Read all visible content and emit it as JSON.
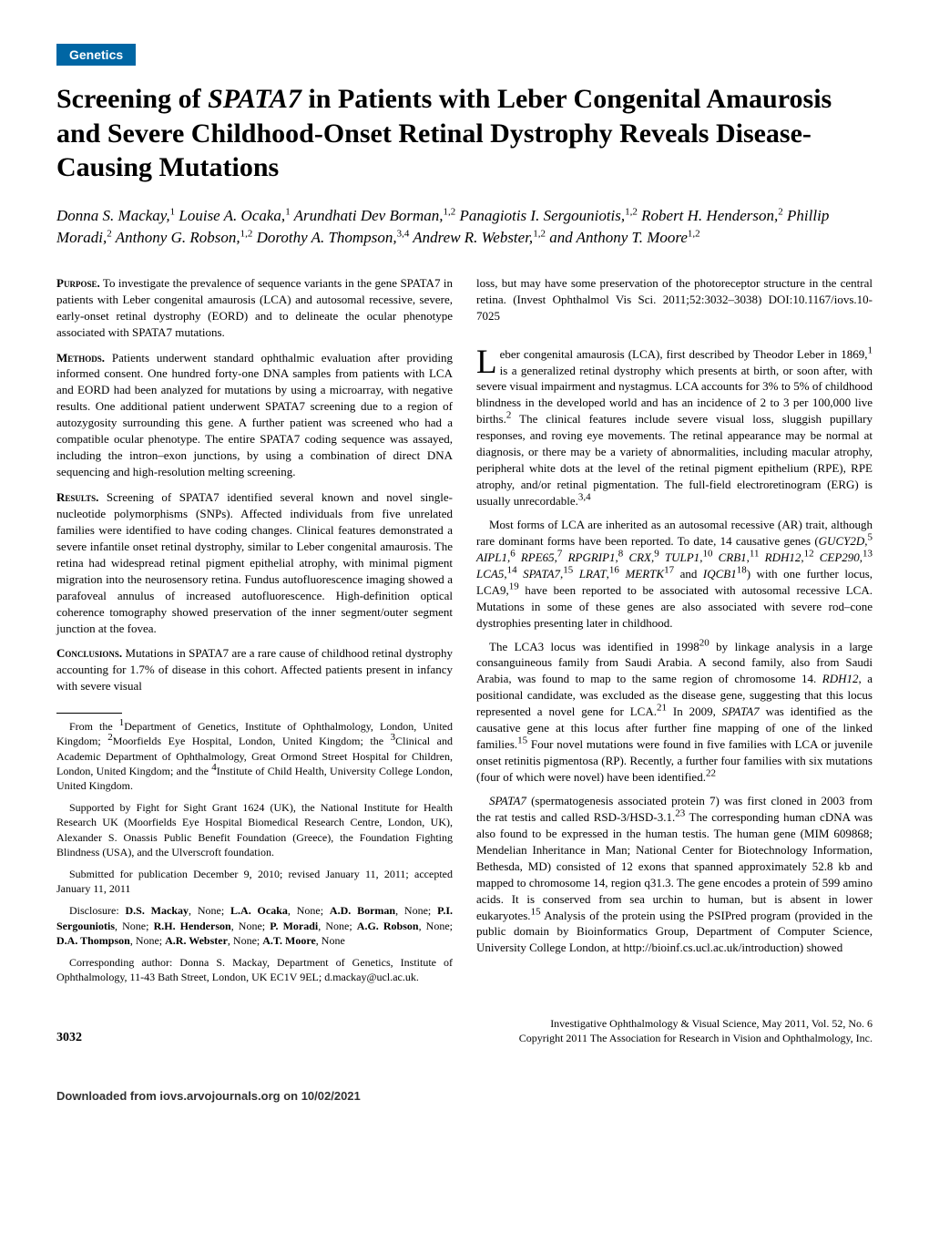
{
  "category": "Genetics",
  "title": "Screening of SPATA7 in Patients with Leber Congenital Amaurosis and Severe Childhood-Onset Retinal Dystrophy Reveals Disease-Causing Mutations",
  "authors_html": "Donna S. Mackay,<span class='sup'>1</span> Louise A. Ocaka,<span class='sup'>1</span> Arundhati Dev Borman,<span class='sup'>1,2</span> Panagiotis I. Sergouniotis,<span class='sup'>1,2</span> Robert H. Henderson,<span class='sup'>2</span> Phillip Moradi,<span class='sup'>2</span> Anthony G. Robson,<span class='sup'>1,2</span> Dorothy A. Thompson,<span class='sup'>3,4</span> Andrew R. Webster,<span class='sup'>1,2</span> and Anthony T. Moore<span class='sup'>1,2</span>",
  "abstract": {
    "purpose": {
      "heading": "Purpose.",
      "text": "To investigate the prevalence of sequence variants in the gene SPATA7 in patients with Leber congenital amaurosis (LCA) and autosomal recessive, severe, early-onset retinal dystrophy (EORD) and to delineate the ocular phenotype associated with SPATA7 mutations."
    },
    "methods": {
      "heading": "Methods.",
      "text": "Patients underwent standard ophthalmic evaluation after providing informed consent. One hundred forty-one DNA samples from patients with LCA and EORD had been analyzed for mutations by using a microarray, with negative results. One additional patient underwent SPATA7 screening due to a region of autozygosity surrounding this gene. A further patient was screened who had a compatible ocular phenotype. The entire SPATA7 coding sequence was assayed, including the intron–exon junctions, by using a combination of direct DNA sequencing and high-resolution melting screening."
    },
    "results": {
      "heading": "Results.",
      "text": "Screening of SPATA7 identified several known and novel single-nucleotide polymorphisms (SNPs). Affected individuals from five unrelated families were identified to have coding changes. Clinical features demonstrated a severe infantile onset retinal dystrophy, similar to Leber congenital amaurosis. The retina had widespread retinal pigment epithelial atrophy, with minimal pigment migration into the neurosensory retina. Fundus autofluorescence imaging showed a parafoveal annulus of increased autofluorescence. High-definition optical coherence tomography showed preservation of the inner segment/outer segment junction at the fovea."
    },
    "conclusions": {
      "heading": "Conclusions.",
      "text": "Mutations in SPATA7 are a rare cause of childhood retinal dystrophy accounting for 1.7% of disease in this cohort. Affected patients present in infancy with severe visual"
    }
  },
  "col2_continuation": "loss, but may have some preservation of the photoreceptor structure in the central retina. (Invest Ophthalmol Vis Sci. 2011;52:3032–3038) DOI:10.1167/iovs.10-7025",
  "body_para1_html": "<span class='dropcap'>L</span>eber congenital amaurosis (LCA), first described by Theodor Leber in 1869,<span class='sup'>1</span> is a generalized retinal dystrophy which presents at birth, or soon after, with severe visual impairment and nystagmus. LCA accounts for 3% to 5% of childhood blindness in the developed world and has an incidence of 2 to 3 per 100,000 live births.<span class='sup'>2</span> The clinical features include severe visual loss, sluggish pupillary responses, and roving eye movements. The retinal appearance may be normal at diagnosis, or there may be a variety of abnormalities, including macular atrophy, peripheral white dots at the level of the retinal pigment epithelium (RPE), RPE atrophy, and/or retinal pigmentation. The full-field electroretinogram (ERG) is usually unrecordable.<span class='sup'>3,4</span>",
  "body_para2_html": "Most forms of LCA are inherited as an autosomal recessive (AR) trait, although rare dominant forms have been reported. To date, 14 causative genes (<span class='gene'>GUCY2D</span>,<span class='sup'>5</span> <span class='gene'>AIPL1</span>,<span class='sup'>6</span> <span class='gene'>RPE65</span>,<span class='sup'>7</span> <span class='gene'>RPGRIP1</span>,<span class='sup'>8</span> <span class='gene'>CRX</span>,<span class='sup'>9</span> <span class='gene'>TULP1</span>,<span class='sup'>10</span> <span class='gene'>CRB1</span>,<span class='sup'>11</span> <span class='gene'>RDH12</span>,<span class='sup'>12</span> <span class='gene'>CEP290</span>,<span class='sup'>13</span> <span class='gene'>LCA5</span>,<span class='sup'>14</span> <span class='gene'>SPATA7</span>,<span class='sup'>15</span> <span class='gene'>LRAT</span>,<span class='sup'>16</span> <span class='gene'>MERTK</span><span class='sup'>17</span> and <span class='gene'>IQCB1</span><span class='sup'>18</span>) with one further locus, LCA9,<span class='sup'>19</span> have been reported to be associated with autosomal recessive LCA. Mutations in some of these genes are also associated with severe rod–cone dystrophies presenting later in childhood.",
  "body_para3_html": "The LCA3 locus was identified in 1998<span class='sup'>20</span> by linkage analysis in a large consanguineous family from Saudi Arabia. A second family, also from Saudi Arabia, was found to map to the same region of chromosome 14. <span class='gene'>RDH12</span>, a positional candidate, was excluded as the disease gene, suggesting that this locus represented a novel gene for LCA.<span class='sup'>21</span> In 2009, <span class='gene'>SPATA7</span> was identified as the causative gene at this locus after further fine mapping of one of the linked families.<span class='sup'>15</span> Four novel mutations were found in five families with LCA or juvenile onset retinitis pigmentosa (RP). Recently, a further four families with six mutations (four of which were novel) have been identified.<span class='sup'>22</span>",
  "body_para4_html": "<span class='gene'>SPATA7</span> (spermatogenesis associated protein 7) was first cloned in 2003 from the rat testis and called RSD-3/HSD-3.1.<span class='sup'>23</span> The corresponding human cDNA was also found to be expressed in the human testis. The human gene (MIM 609868; Mendelian Inheritance in Man; National Center for Biotechnology Information, Bethesda, MD) consisted of 12 exons that spanned approximately 52.8 kb and mapped to chromosome 14, region q31.3. The gene encodes a protein of 599 amino acids. It is conserved from sea urchin to human, but is absent in lower eukaryotes.<span class='sup'>15</span> Analysis of the protein using the PSIPred program (provided in the public domain by Bioinformatics Group, Department of Computer Science, University College London, at http://bioinf.cs.ucl.ac.uk/introduction) showed",
  "footnotes": {
    "affiliations_html": "From the <span class='sup'>1</span>Department of Genetics, Institute of Ophthalmology, London, United Kingdom; <span class='sup'>2</span>Moorfields Eye Hospital, London, United Kingdom; the <span class='sup'>3</span>Clinical and Academic Department of Ophthalmology, Great Ormond Street Hospital for Children, London, United Kingdom; and the <span class='sup'>4</span>Institute of Child Health, University College London, United Kingdom.",
    "support": "Supported by Fight for Sight Grant 1624 (UK), the National Institute for Health Research UK (Moorfields Eye Hospital Biomedical Research Centre, London, UK), Alexander S. Onassis Public Benefit Foundation (Greece), the Foundation Fighting Blindness (USA), and the Ulverscroft foundation.",
    "submitted": "Submitted for publication December 9, 2010; revised January 11, 2011; accepted January 11, 2011",
    "disclosure_html": "Disclosure: <b>D.S. Mackay</b>, None; <b>L.A. Ocaka</b>, None; <b>A.D. Borman</b>, None; <b>P.I. Sergouniotis</b>, None; <b>R.H. Henderson</b>, None; <b>P. Moradi</b>, None; <b>A.G. Robson</b>, None; <b>D.A. Thompson</b>, None; <b>A.R. Webster</b>, None; <b>A.T. Moore</b>, None",
    "corresponding": "Corresponding author: Donna S. Mackay, Department of Genetics, Institute of Ophthalmology, 11-43 Bath Street, London, UK EC1V 9EL; d.mackay@ucl.ac.uk."
  },
  "page_number": "3032",
  "journal_line1": "Investigative Ophthalmology & Visual Science, May 2011, Vol. 52, No. 6",
  "journal_line2": "Copyright 2011 The Association for Research in Vision and Ophthalmology, Inc.",
  "download_footer": "Downloaded from iovs.arvojournals.org on 10/02/2021",
  "colors": {
    "category_bg": "#0066a4",
    "category_text": "#ffffff",
    "body_text": "#000000",
    "background": "#ffffff"
  }
}
